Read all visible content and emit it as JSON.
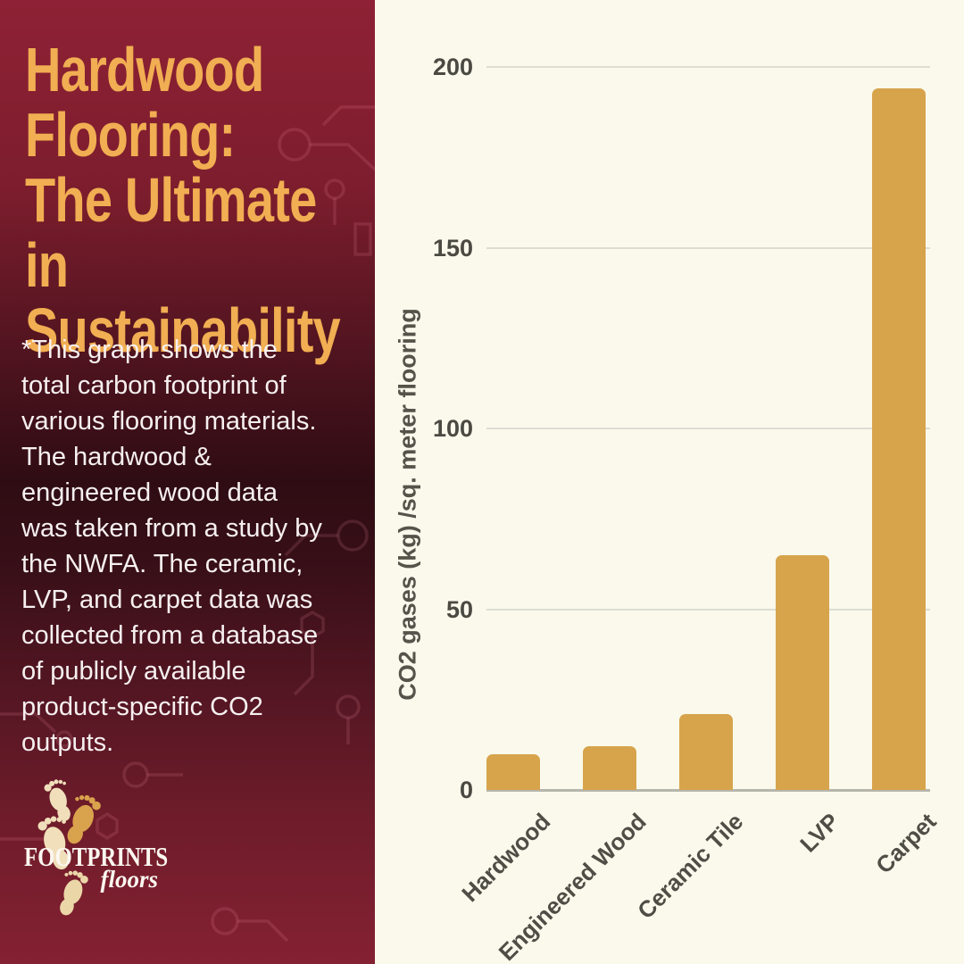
{
  "sidebar": {
    "title": "Hardwood\nFlooring:\nThe Ultimate in\nSustainability",
    "description": "*This graph shows the\ntotal carbon footprint of\nvarious flooring materials.\nThe hardwood &\nengineered wood data\nwas taken from a study by\nthe NWFA. The ceramic,\nLVP, and carpet data was\ncollected from a database\nof publicly available\nproduct-specific CO2\noutputs.",
    "logo": {
      "brand": "FOOTPRINTS",
      "sub": "floors"
    }
  },
  "chart_data": {
    "type": "bar",
    "categories": [
      "Hardwood",
      "Engineered Wood",
      "Ceramic Tile",
      "LVP",
      "Carpet"
    ],
    "values": [
      10,
      12,
      21,
      65,
      194
    ],
    "title": "",
    "xlabel": "",
    "ylabel": "CO2 gases (kg) /sq. meter flooring",
    "ylim": [
      0,
      200
    ],
    "yticks": [
      0,
      50,
      100,
      150,
      200
    ],
    "grid": true,
    "legend": "none",
    "bar_color": "#D7A44C"
  },
  "colors": {
    "sidebar_top": "#8E2135",
    "sidebar_dark": "#2F0C13",
    "sidebar_bottom": "#842132",
    "title_gold": "#F1AE52",
    "body_text": "#F6F0F0",
    "panel_cream": "#FAF9EC",
    "bar": "#D7A44C",
    "gridline": "#DDDDD3",
    "axis_text": "#4B4A42",
    "foot_cream": "#F0DFBA",
    "foot_amber": "#D9A24C"
  }
}
